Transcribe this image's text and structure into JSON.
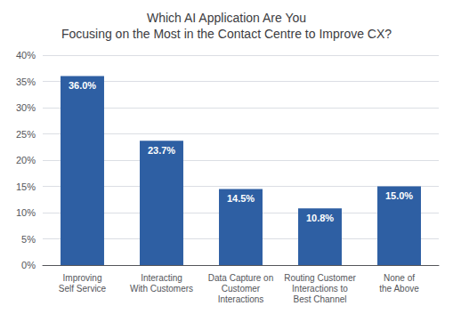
{
  "chart_data": {
    "type": "bar",
    "title": "Which AI Application Are You\nFocusing on the Most in the Contact Centre to Improve CX?",
    "categories": [
      "Improving\nSelf Service",
      "Interacting\nWith Customers",
      "Data Capture on\nCustomer\nInteractions",
      "Routing Customer\nInteractions to\nBest Channel",
      "None of\nthe Above"
    ],
    "values": [
      36.0,
      23.7,
      14.5,
      10.8,
      15.0
    ],
    "value_labels": [
      "36.0%",
      "23.7%",
      "14.5%",
      "10.8%",
      "15.0%"
    ],
    "data_labels": true,
    "color": "#2E5FA3",
    "ylim": [
      0,
      40
    ],
    "yticks": [
      {
        "value": 0,
        "label": "0%"
      },
      {
        "value": 5,
        "label": "5%"
      },
      {
        "value": 10,
        "label": "10%"
      },
      {
        "value": 15,
        "label": "15%"
      },
      {
        "value": 20,
        "label": "20%"
      },
      {
        "value": 25,
        "label": "25%"
      },
      {
        "value": 30,
        "label": "30%"
      },
      {
        "value": 35,
        "label": "35%"
      },
      {
        "value": 40,
        "label": "40%"
      }
    ],
    "grid": true
  }
}
